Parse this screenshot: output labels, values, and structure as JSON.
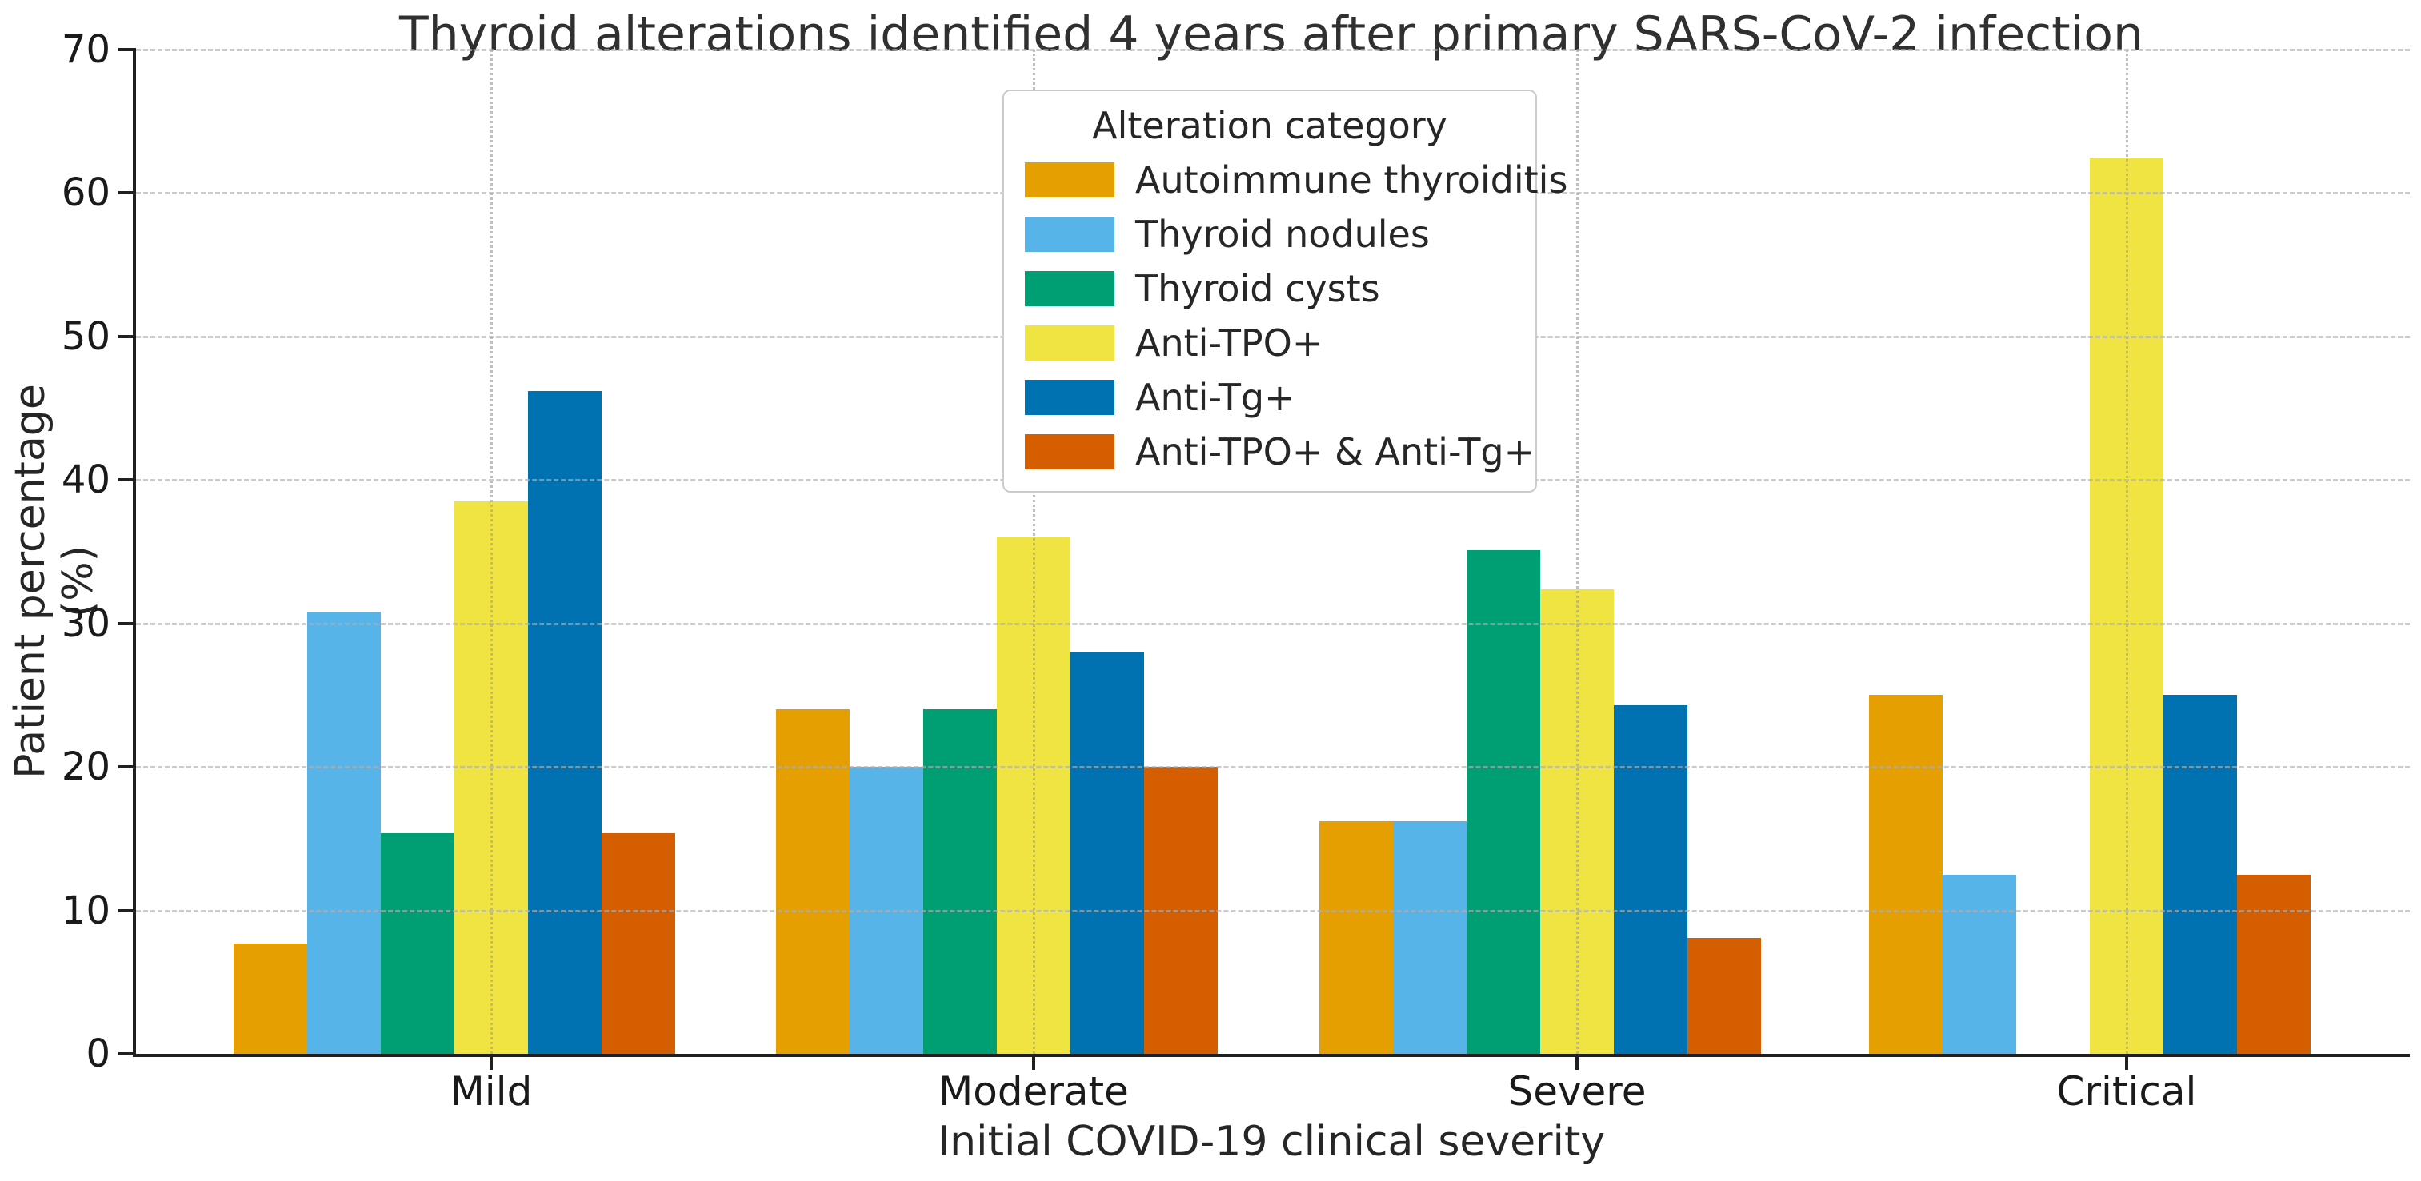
{
  "chart_data": {
    "type": "bar",
    "title": "Thyroid alterations identified 4 years after primary SARS-CoV-2 infection",
    "xlabel": "Initial COVID-19 clinical severity",
    "ylabel": "Patient percentage (%)",
    "ylim": [
      0,
      70
    ],
    "yticks": [
      "0",
      "10",
      "20",
      "30",
      "40",
      "50",
      "60",
      "70"
    ],
    "ytick_values": [
      0,
      10,
      20,
      30,
      40,
      50,
      60,
      70
    ],
    "categories": [
      "Mild",
      "Moderate",
      "Severe",
      "Critical"
    ],
    "legend_title": "Alteration category",
    "legend_position": "upper center",
    "grid": {
      "horizontal": "dashed",
      "vertical": "dotted",
      "drawn_above_bars": true
    },
    "series": [
      {
        "name": "Autoimmune thyroiditis",
        "color": "#E69F00",
        "values": [
          7.7,
          24.0,
          16.2,
          25.0
        ]
      },
      {
        "name": "Thyroid nodules",
        "color": "#56B4E9",
        "values": [
          30.8,
          20.0,
          16.2,
          12.5
        ]
      },
      {
        "name": "Thyroid cysts",
        "color": "#009E73",
        "values": [
          15.4,
          24.0,
          35.1,
          0.0
        ]
      },
      {
        "name": "Anti-TPO+",
        "color": "#F0E442",
        "values": [
          38.5,
          36.0,
          32.4,
          62.5
        ]
      },
      {
        "name": "Anti-Tg+",
        "color": "#0072B2",
        "values": [
          46.2,
          28.0,
          24.3,
          25.0
        ]
      },
      {
        "name": "Anti-TPO+ & Anti-Tg+",
        "color": "#D55E00",
        "values": [
          15.4,
          20.0,
          8.1,
          12.5
        ]
      }
    ]
  }
}
